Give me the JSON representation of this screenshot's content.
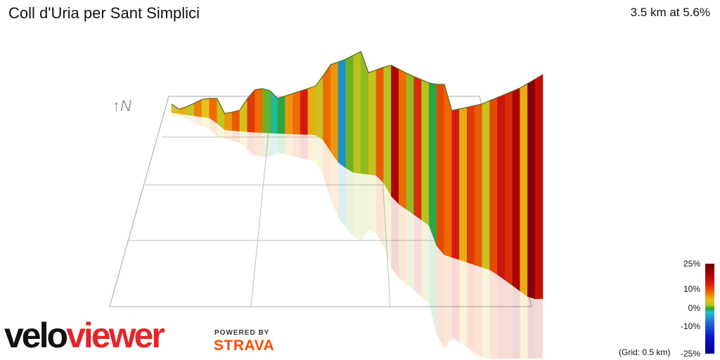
{
  "header": {
    "title": "Coll d'Uria per Sant Simplici",
    "stats": "3.5 km at 5.6%"
  },
  "compass": "↑N",
  "legend": {
    "ticks": [
      "25%",
      "10%",
      "0%",
      "-10%",
      "-25%"
    ],
    "grid_note": "(Grid: 0.5 km)"
  },
  "branding": {
    "logo_part1": "velo",
    "logo_part2": "viewer",
    "powered_by": "POWERED BY",
    "strava": "STRAVA"
  },
  "chart_data": {
    "type": "area",
    "title": "Coll d'Uria per Sant Simplici",
    "subtitle": "3.5 km at 5.6%",
    "xlabel": "",
    "ylabel": "",
    "grid": true,
    "legend": "bottom-right",
    "colorscale": {
      "min": -25,
      "max": 25,
      "ticks": [
        25,
        10,
        0,
        -10,
        -25
      ]
    },
    "segments_gradient_pct": [
      4,
      6,
      3,
      8,
      5,
      9,
      3,
      7,
      10,
      4,
      12,
      9,
      0,
      -6,
      -3,
      7,
      9,
      14,
      6,
      3,
      9,
      7,
      -10,
      0,
      2,
      1,
      3,
      10,
      2,
      18,
      9,
      1,
      13,
      2,
      -3,
      11,
      9,
      14,
      6,
      12,
      10,
      3,
      11,
      15,
      13,
      18,
      6,
      22,
      16
    ]
  }
}
